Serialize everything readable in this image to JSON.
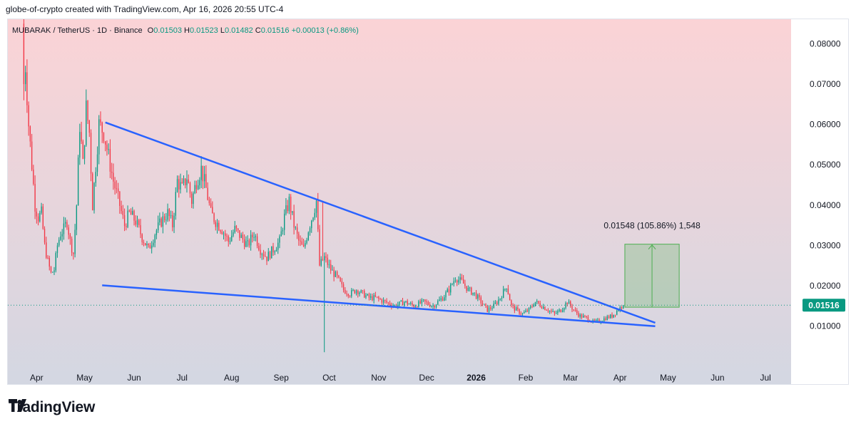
{
  "header": {
    "attribution": "globe-of-crypto created with TradingView.com, Apr 16, 2026 20:55 UTC-4"
  },
  "legend": {
    "symbol": "MUBARAK / TetherUS · 1D · Binance",
    "open_label": "O",
    "open": "0.01503",
    "high_label": "H",
    "high": "0.01523",
    "low_label": "L",
    "low": "0.01482",
    "close_label": "C",
    "close": "0.01516",
    "change": "+0.00013 (+0.86%)"
  },
  "price_tag": "0.01516",
  "measure_label": "0.01548 (105.86%) 1,548",
  "brand": {
    "name": "TradingView"
  },
  "colors": {
    "up": "#089981",
    "down": "#f23645",
    "trendline": "#2962ff",
    "measure": "#4caf50",
    "bg_top": "#fbd3d6",
    "bg_bottom": "#d3d7e2"
  },
  "chart_data": {
    "type": "candlestick",
    "ylim": [
      0.0,
      0.087
    ],
    "yticks": [
      "0.08000",
      "0.07000",
      "0.06000",
      "0.05000",
      "0.04000",
      "0.03000",
      "0.02000",
      "0.01000"
    ],
    "ytick_values": [
      0.08,
      0.07,
      0.06,
      0.05,
      0.04,
      0.03,
      0.02,
      0.01
    ],
    "xticks": [
      "Apr",
      "May",
      "Jun",
      "Jul",
      "Aug",
      "Sep",
      "Oct",
      "Nov",
      "Dec",
      "2026",
      "Feb",
      "Mar",
      "Apr",
      "May",
      "Jun",
      "Jul"
    ],
    "xtick_days": [
      8,
      38,
      69,
      99,
      130,
      161,
      191,
      222,
      252,
      283,
      314,
      342,
      373,
      403,
      434,
      464
    ],
    "bold_ticks": [
      "2026"
    ],
    "last_price": 0.01516,
    "close_path": [
      [
        0,
        0.082
      ],
      [
        3,
        0.06
      ],
      [
        5,
        0.05
      ],
      [
        7,
        0.04
      ],
      [
        9,
        0.037
      ],
      [
        11,
        0.038
      ],
      [
        13,
        0.03
      ],
      [
        15,
        0.026
      ],
      [
        17,
        0.023
      ],
      [
        19,
        0.024
      ],
      [
        21,
        0.03
      ],
      [
        23,
        0.033
      ],
      [
        25,
        0.034
      ],
      [
        27,
        0.036
      ],
      [
        29,
        0.031
      ],
      [
        31,
        0.028
      ],
      [
        33,
        0.04
      ],
      [
        35,
        0.06
      ],
      [
        37,
        0.05
      ],
      [
        39,
        0.064
      ],
      [
        41,
        0.058
      ],
      [
        43,
        0.04
      ],
      [
        45,
        0.05
      ],
      [
        47,
        0.06
      ],
      [
        50,
        0.058
      ],
      [
        53,
        0.052
      ],
      [
        56,
        0.046
      ],
      [
        60,
        0.04
      ],
      [
        63,
        0.035
      ],
      [
        66,
        0.038
      ],
      [
        70,
        0.036
      ],
      [
        74,
        0.032
      ],
      [
        78,
        0.029
      ],
      [
        82,
        0.033
      ],
      [
        86,
        0.036
      ],
      [
        90,
        0.038
      ],
      [
        93,
        0.035
      ],
      [
        96,
        0.046
      ],
      [
        99,
        0.044
      ],
      [
        102,
        0.047
      ],
      [
        105,
        0.041
      ],
      [
        108,
        0.046
      ],
      [
        111,
        0.049
      ],
      [
        114,
        0.044
      ],
      [
        117,
        0.038
      ],
      [
        120,
        0.036
      ],
      [
        124,
        0.034
      ],
      [
        128,
        0.031
      ],
      [
        132,
        0.034
      ],
      [
        136,
        0.032
      ],
      [
        140,
        0.03
      ],
      [
        144,
        0.033
      ],
      [
        148,
        0.029
      ],
      [
        152,
        0.027
      ],
      [
        156,
        0.029
      ],
      [
        160,
        0.031
      ],
      [
        163,
        0.037
      ],
      [
        166,
        0.041
      ],
      [
        169,
        0.035
      ],
      [
        172,
        0.031
      ],
      [
        175,
        0.029
      ],
      [
        178,
        0.034
      ],
      [
        181,
        0.038
      ],
      [
        183,
        0.041
      ],
      [
        185,
        0.025
      ],
      [
        188,
        0.027
      ],
      [
        192,
        0.024
      ],
      [
        196,
        0.022
      ],
      [
        200,
        0.019
      ],
      [
        204,
        0.018
      ],
      [
        208,
        0.019
      ],
      [
        212,
        0.018
      ],
      [
        216,
        0.017
      ],
      [
        220,
        0.017
      ],
      [
        226,
        0.016
      ],
      [
        232,
        0.015
      ],
      [
        238,
        0.016
      ],
      [
        244,
        0.015
      ],
      [
        250,
        0.016
      ],
      [
        256,
        0.015
      ],
      [
        262,
        0.017
      ],
      [
        266,
        0.019
      ],
      [
        270,
        0.022
      ],
      [
        274,
        0.021
      ],
      [
        278,
        0.019
      ],
      [
        282,
        0.018
      ],
      [
        286,
        0.016
      ],
      [
        290,
        0.014
      ],
      [
        294,
        0.015
      ],
      [
        298,
        0.017
      ],
      [
        302,
        0.02
      ],
      [
        305,
        0.015
      ],
      [
        308,
        0.014
      ],
      [
        312,
        0.013
      ],
      [
        316,
        0.014
      ],
      [
        320,
        0.016
      ],
      [
        324,
        0.015
      ],
      [
        328,
        0.014
      ],
      [
        332,
        0.013
      ],
      [
        336,
        0.014
      ],
      [
        340,
        0.016
      ],
      [
        344,
        0.014
      ],
      [
        348,
        0.0125
      ],
      [
        352,
        0.012
      ],
      [
        356,
        0.011
      ],
      [
        360,
        0.0112
      ],
      [
        364,
        0.012
      ],
      [
        368,
        0.0125
      ],
      [
        372,
        0.0142
      ],
      [
        375,
        0.01516
      ]
    ],
    "upper_trendline": {
      "from": {
        "day": 51,
        "price": 0.0605
      },
      "to": {
        "day": 395,
        "price": 0.0108
      }
    },
    "lower_trendline": {
      "from": {
        "day": 49,
        "price": 0.0201
      },
      "to": {
        "day": 395,
        "price": 0.00995
      }
    },
    "measure": {
      "day_from": 376,
      "day_to": 410,
      "price_from": 0.01467,
      "price_to": 0.0303
    },
    "spike": {
      "day": 188,
      "low": 0.0035,
      "high": 0.041
    }
  }
}
